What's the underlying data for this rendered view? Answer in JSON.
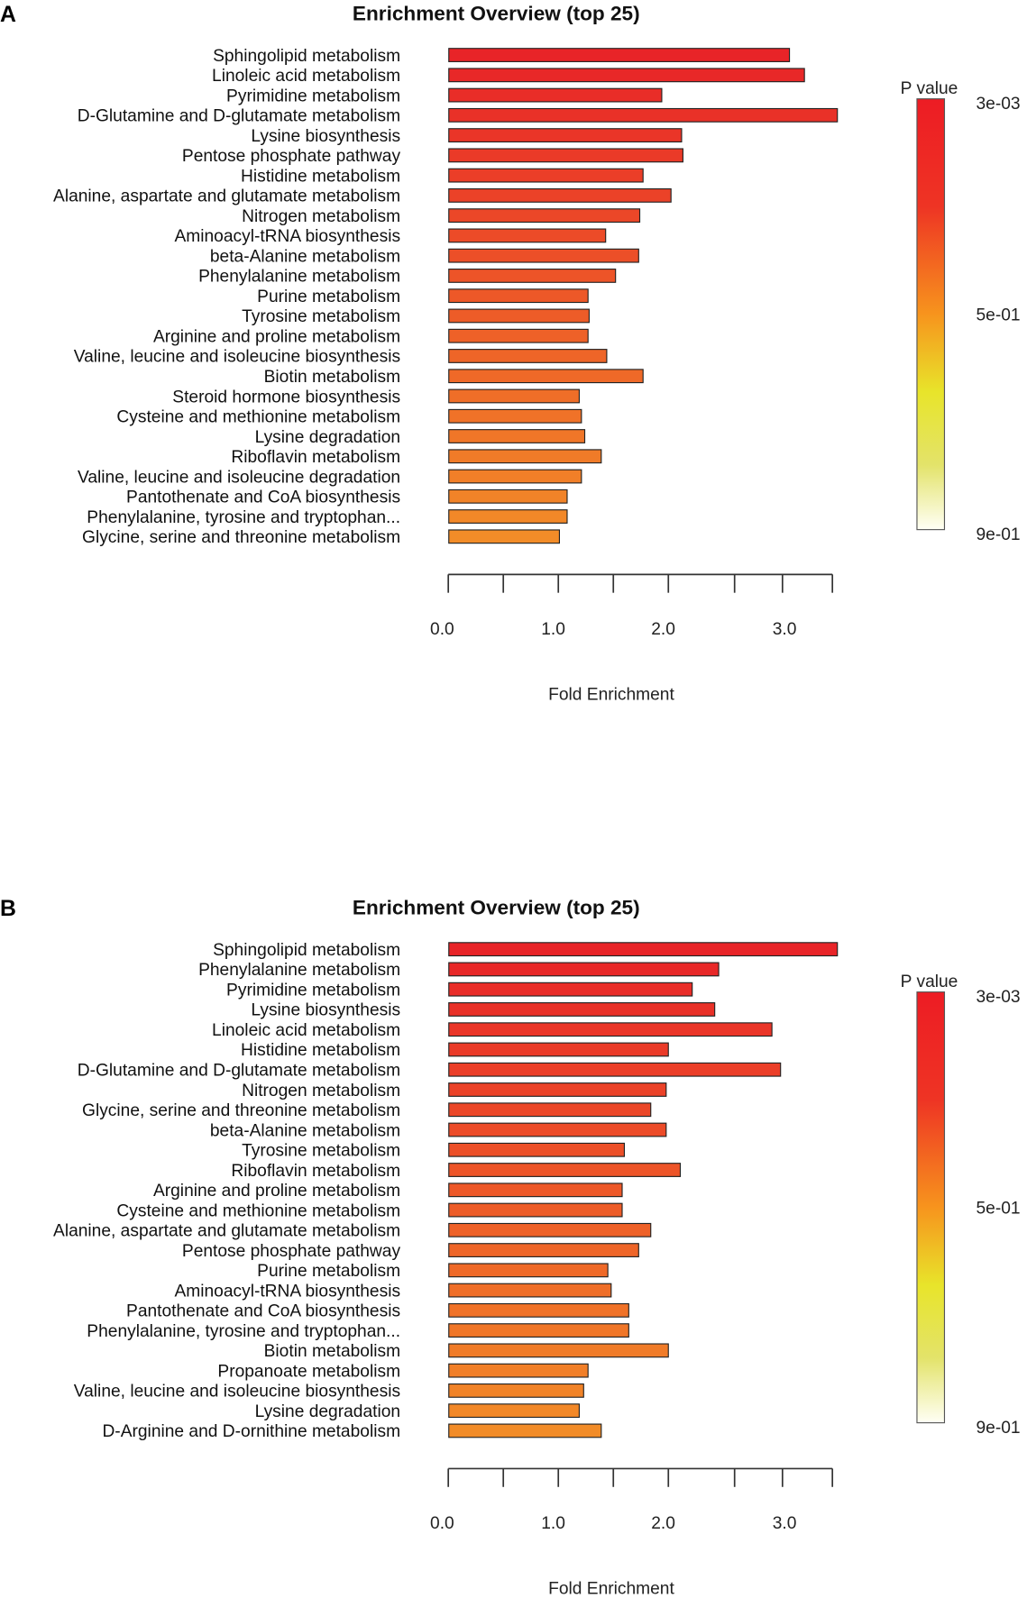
{
  "chart_data": [
    {
      "type": "bar",
      "panel": "A",
      "title": "Enrichment Overview (top 25)",
      "xlabel": "Fold Enrichment",
      "xticks": [
        "0.0",
        "1.0",
        "2.0",
        "3.0"
      ],
      "xlim": [
        0,
        3.5
      ],
      "legend": {
        "title": "P value",
        "labels": [
          "3e-03",
          "5e-01",
          "9e-01"
        ],
        "placement": "right",
        "colors": [
          "#ed1c24",
          "#f7941d",
          "#e8e42a",
          "#fffff0"
        ]
      },
      "categories": [
        "Sphingolipid metabolism",
        "Linoleic acid metabolism",
        "Pyrimidine metabolism",
        "D-Glutamine and D-glutamate metabolism",
        "Lysine biosynthesis",
        "Pentose phosphate pathway",
        "Histidine metabolism",
        "Alanine, aspartate and glutamate metabolism",
        "Nitrogen metabolism",
        "Aminoacyl-tRNA biosynthesis",
        "beta-Alanine metabolism",
        "Phenylalanine metabolism",
        "Purine metabolism",
        "Tyrosine metabolism",
        "Arginine and proline metabolism",
        "Valine, leucine and isoleucine biosynthesis",
        "Biotin metabolism",
        "Steroid hormone biosynthesis",
        "Cysteine and methionine metabolism",
        "Lysine degradation",
        "Riboflavin metabolism",
        "Valine, leucine and isoleucine degradation",
        "Pantothenate and CoA biosynthesis",
        "Phenylalanine, tyrosine and tryptophan...",
        "Glycine, serine and threonine metabolism"
      ],
      "values": [
        3.07,
        3.22,
        1.94,
        3.55,
        2.1,
        2.11,
        1.77,
        2.02,
        1.74,
        1.43,
        1.73,
        1.52,
        1.27,
        1.28,
        1.27,
        1.44,
        1.77,
        1.19,
        1.21,
        1.24,
        1.39,
        1.21,
        1.08,
        1.08,
        1.01
      ]
    },
    {
      "type": "bar",
      "panel": "B",
      "title": "Enrichment Overview (top 25)",
      "xlabel": "Fold Enrichment",
      "xticks": [
        "0.0",
        "1.0",
        "2.0",
        "3.0"
      ],
      "xlim": [
        0,
        3.5
      ],
      "legend": {
        "title": "P value",
        "labels": [
          "3e-03",
          "5e-01",
          "9e-01"
        ],
        "placement": "right",
        "colors": [
          "#ed1c24",
          "#f7941d",
          "#e8e42a",
          "#fffff0"
        ]
      },
      "categories": [
        "Sphingolipid metabolism",
        "Phenylalanine metabolism",
        "Pyrimidine metabolism",
        "Lysine biosynthesis",
        "Linoleic acid metabolism",
        "Histidine metabolism",
        "D-Glutamine and D-glutamate metabolism",
        "Nitrogen metabolism",
        "Glycine, serine and threonine metabolism",
        "beta-Alanine metabolism",
        "Tyrosine metabolism",
        "Riboflavin metabolism",
        "Arginine and proline metabolism",
        "Cysteine and methionine metabolism",
        "Alanine, aspartate and glutamate metabolism",
        "Pentose phosphate pathway",
        "Purine metabolism",
        "Aminoacyl-tRNA biosynthesis",
        "Pantothenate and CoA biosynthesis",
        "Phenylalanine, tyrosine and tryptophan...",
        "Biotin metabolism",
        "Propanoate metabolism",
        "Valine, leucine and isoleucine biosynthesis",
        "Lysine degradation",
        "D-Arginine and D-ornithine metabolism"
      ],
      "values": [
        3.55,
        2.38,
        2.18,
        2.35,
        2.89,
        2.0,
        2.98,
        1.98,
        1.84,
        1.98,
        1.6,
        2.09,
        1.58,
        1.58,
        1.84,
        1.73,
        1.45,
        1.48,
        1.64,
        1.64,
        2.0,
        1.27,
        1.23,
        1.19,
        1.39
      ]
    }
  ]
}
